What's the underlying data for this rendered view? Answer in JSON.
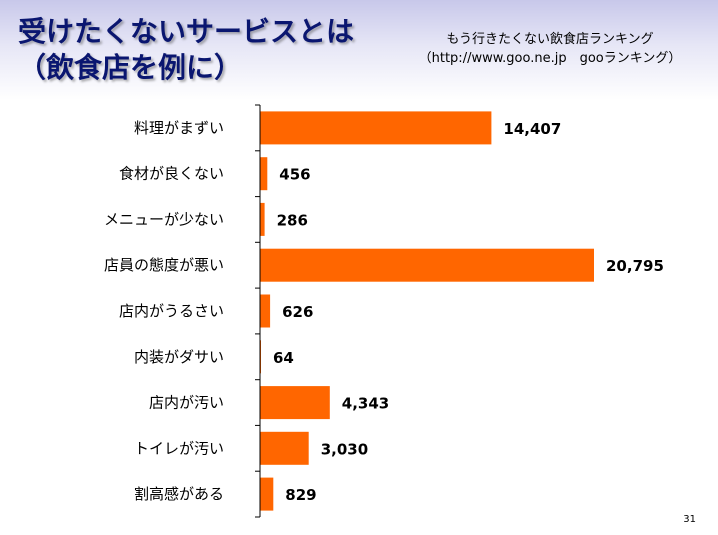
{
  "slide": {
    "title_line1": "受けたくないサービスとは",
    "title_line2": "（飲食店を例に）",
    "source_line1": "もう行きたくない飲食店ランキング",
    "source_line2": "（http://www.goo.ne.jp　gooランキング）",
    "page_number": "31"
  },
  "colors": {
    "bar": "#ff6600",
    "title": "#0a1670",
    "axis": "#000000"
  },
  "chart_data": {
    "type": "bar",
    "orientation": "horizontal",
    "categories": [
      "料理がまずい",
      "食材が良くない",
      "メニューが少ない",
      "店員の態度が悪い",
      "店内がうるさい",
      "内装がダサい",
      "店内が汚い",
      "トイレが汚い",
      "割高感がある"
    ],
    "values": [
      14407,
      456,
      286,
      20795,
      626,
      64,
      4343,
      3030,
      829
    ],
    "value_labels": [
      "14,407",
      "456",
      "286",
      "20,795",
      "626",
      "64",
      "4,343",
      "3,030",
      "829"
    ],
    "title": "",
    "xlabel": "",
    "ylabel": "",
    "xlim": [
      0,
      24000
    ],
    "grid": false,
    "legend": "none"
  }
}
